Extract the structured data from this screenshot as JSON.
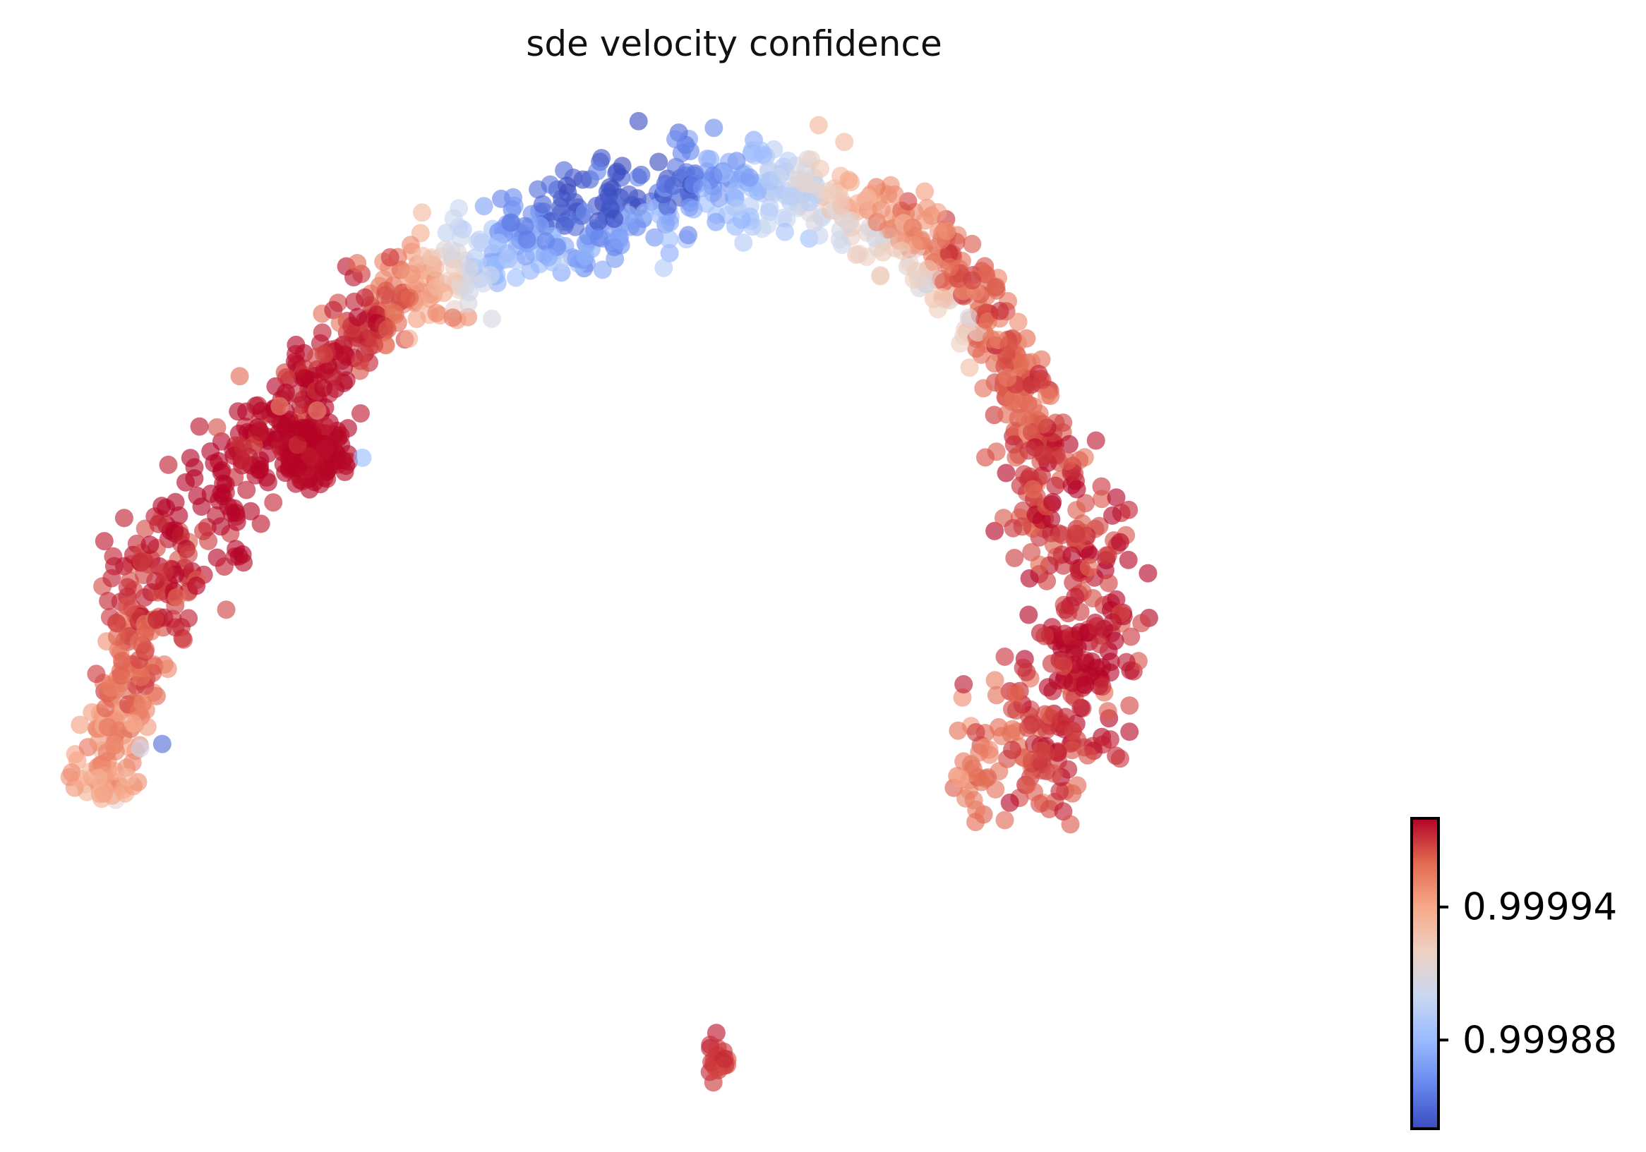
{
  "chart_data": {
    "type": "scatter",
    "title": "sde velocity confidence",
    "xlabel": "",
    "ylabel": "",
    "axes_visible": false,
    "grid": false,
    "legend": "none",
    "colormap": {
      "name": "coolwarm",
      "stops": [
        "#3b4cc0",
        "#6788ee",
        "#9abbff",
        "#c9d7f0",
        "#edd1c2",
        "#f7a889",
        "#e26952",
        "#b40426"
      ],
      "range": [
        0.99984,
        0.99998
      ],
      "ticks": [
        {
          "value": 0.99988,
          "label": "0.99988"
        },
        {
          "value": 0.99994,
          "label": "0.99994"
        }
      ],
      "location": "bottom-right"
    },
    "marker": {
      "alpha": 0.62
    },
    "xlim": [
      0,
      100
    ],
    "ylim": [
      0,
      70
    ],
    "groups": [
      {
        "name": "main arc",
        "n": 1500,
        "path": [
          [
            0.7,
            22.2
          ],
          [
            2.4,
            26.2
          ],
          [
            4.9,
            35.2
          ],
          [
            8.6,
            41.7
          ],
          [
            13.4,
            46.8
          ],
          [
            18.5,
            52.5
          ],
          [
            23.6,
            56.8
          ],
          [
            30.1,
            59.8
          ],
          [
            36.7,
            62.1
          ],
          [
            44.4,
            64.0
          ],
          [
            50.3,
            65.1
          ],
          [
            56.4,
            64.8
          ],
          [
            63.4,
            61.8
          ],
          [
            68.0,
            58.3
          ],
          [
            71.1,
            53.3
          ],
          [
            73.7,
            47.2
          ],
          [
            75.9,
            41.1
          ],
          [
            77.6,
            35.4
          ],
          [
            77.7,
            30.2
          ],
          [
            76.0,
            25.7
          ],
          [
            71.9,
            24.5
          ],
          [
            67.4,
            24.7
          ]
        ],
        "color_profile": [
          [
            0.0,
            0.99994
          ],
          [
            0.04,
            0.99995
          ],
          [
            0.1,
            0.99997
          ],
          [
            0.18,
            0.99998
          ],
          [
            0.26,
            0.99998
          ],
          [
            0.33,
            0.99996
          ],
          [
            0.39,
            0.99987
          ],
          [
            0.44,
            0.99984
          ],
          [
            0.5,
            0.99985
          ],
          [
            0.56,
            0.9999
          ],
          [
            0.6,
            0.99994
          ],
          [
            0.66,
            0.99996
          ],
          [
            0.72,
            0.99996
          ],
          [
            0.8,
            0.99997
          ],
          [
            0.88,
            0.99998
          ],
          [
            0.94,
            0.99997
          ],
          [
            1.0,
            0.99995
          ]
        ],
        "inner_band_value": 0.99989
      },
      {
        "name": "round cluster",
        "n": 150,
        "center": [
          17.7,
          46.2
        ],
        "spread": [
          2.1,
          2.0
        ],
        "value": 0.99998
      },
      {
        "name": "small cluster",
        "n": 24,
        "center": [
          49.0,
          3.6
        ],
        "spread": [
          0.7,
          1.6
        ],
        "value": 0.99997
      },
      {
        "name": "outliers",
        "points": [
          [
            21.5,
            45.9,
            0.99988
          ],
          [
            6.0,
            25.9,
            0.99985
          ],
          [
            4.3,
            25.6,
            0.9999
          ],
          [
            15.1,
            49.5,
            0.99995
          ],
          [
            18.0,
            49.2,
            0.99995
          ],
          [
            21.1,
            59.5,
            0.99996
          ],
          [
            12.0,
            51.6,
            0.99996
          ],
          [
            68.5,
            52.2,
            0.99993
          ],
          [
            71.8,
            49.8,
            0.99996
          ]
        ]
      }
    ]
  }
}
